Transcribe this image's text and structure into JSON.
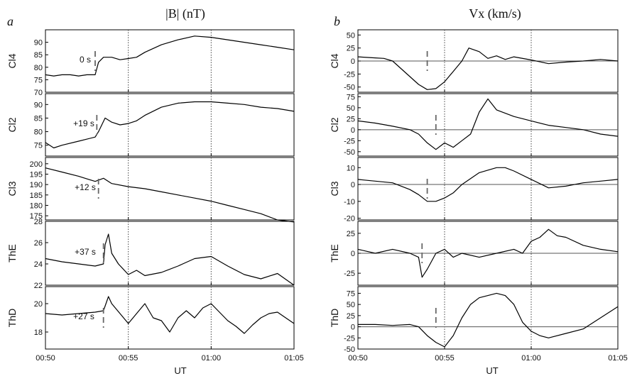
{
  "panels": [
    {
      "letter": "a",
      "title": "|B| (nT)",
      "xlabel": "UT",
      "xticks": [
        "00:50",
        "00:55",
        "01:00",
        "01:05"
      ],
      "rows": [
        {
          "label": "Cl4",
          "shift": "0 s",
          "yticks": [
            70,
            75,
            80,
            85,
            90
          ]
        },
        {
          "label": "Cl2",
          "shift": "+19 s",
          "yticks": [
            75,
            80,
            85,
            90
          ]
        },
        {
          "label": "Cl3",
          "shift": "+12 s",
          "yticks": [
            175,
            180,
            185,
            190,
            195,
            200
          ]
        },
        {
          "label": "ThE",
          "shift": "+37 s",
          "yticks": [
            22,
            24,
            26,
            28
          ]
        },
        {
          "label": "ThD",
          "shift": "+27 s",
          "yticks": [
            18,
            20
          ]
        }
      ]
    },
    {
      "letter": "b",
      "title": "Vx (km/s)",
      "xlabel": "UT",
      "xticks": [
        "00:50",
        "00:55",
        "01:00",
        "01:05"
      ],
      "rows": [
        {
          "label": "Cl4",
          "yticks": [
            -50,
            -25,
            0,
            25,
            50
          ]
        },
        {
          "label": "Cl2",
          "yticks": [
            -50,
            -25,
            0,
            25,
            50,
            75
          ]
        },
        {
          "label": "Cl3",
          "yticks": [
            -20,
            -10,
            0,
            10
          ]
        },
        {
          "label": "ThE",
          "yticks": [
            -25,
            0,
            25
          ]
        },
        {
          "label": "ThD",
          "yticks": [
            -50,
            -25,
            0,
            25,
            50,
            75
          ]
        }
      ]
    }
  ],
  "chart_data": [
    {
      "type": "line",
      "title": "|B| (nT)",
      "xlabel": "UT",
      "xlim": [
        0,
        15
      ],
      "x_unit": "minutes after 00:50 UT",
      "vertical_reference_lines": [
        5,
        10
      ],
      "series": [
        {
          "name": "Cl4",
          "time_shift": "0 s",
          "ylim": [
            70,
            95
          ],
          "marker_time": 3.0,
          "x": [
            0,
            0.5,
            1,
            1.5,
            2,
            2.5,
            3,
            3.2,
            3.5,
            4,
            4.5,
            5,
            5.5,
            6,
            7,
            8,
            9,
            10,
            11,
            12,
            13,
            14,
            15
          ],
          "y": [
            77,
            76.5,
            77,
            77,
            76.5,
            77,
            77,
            82,
            84,
            84,
            83,
            83.5,
            84,
            86,
            89,
            91,
            92.5,
            92,
            91,
            90,
            89,
            88,
            87
          ]
        },
        {
          "name": "Cl2",
          "time_shift": "+19 s",
          "ylim": [
            71,
            94
          ],
          "marker_time": 3.1,
          "x": [
            0,
            0.5,
            1,
            2,
            3,
            3.2,
            3.6,
            4,
            4.5,
            5,
            5.5,
            6,
            7,
            8,
            9,
            10,
            11,
            12,
            13,
            14,
            15
          ],
          "y": [
            76,
            74,
            75,
            76.5,
            78,
            80,
            85,
            83.5,
            82.5,
            83,
            84,
            86,
            89,
            90.5,
            91,
            91,
            90.5,
            90,
            89,
            88.5,
            87.5
          ]
        },
        {
          "name": "Cl3",
          "time_shift": "+12 s",
          "ylim": [
            173,
            203
          ],
          "marker_time": 3.2,
          "x": [
            0,
            1,
            2,
            3,
            3.5,
            4,
            5,
            6,
            7,
            8,
            9,
            10,
            11,
            12,
            13,
            14,
            15
          ],
          "y": [
            198,
            196,
            194,
            191.5,
            193,
            190.5,
            189,
            188,
            186.5,
            185,
            183.5,
            182,
            180,
            178,
            176,
            173,
            172
          ]
        },
        {
          "name": "ThE",
          "time_shift": "+37 s",
          "ylim": [
            22,
            28
          ],
          "marker_time": 3.5,
          "x": [
            0,
            1,
            2,
            3,
            3.5,
            3.6,
            3.8,
            4,
            4.4,
            5,
            5.5,
            6,
            7,
            8,
            9,
            10,
            11,
            12,
            13,
            14,
            15
          ],
          "y": [
            24.5,
            24.2,
            24,
            23.8,
            24,
            25.8,
            26.8,
            25,
            24,
            23,
            23.4,
            22.9,
            23.2,
            23.8,
            24.5,
            24.7,
            23.8,
            23,
            22.6,
            23.1,
            22
          ]
        },
        {
          "name": "ThD",
          "time_shift": "+27 s",
          "ylim": [
            16.8,
            21.2
          ],
          "marker_time": 3.5,
          "x": [
            0,
            1,
            2,
            3,
            3.5,
            3.8,
            4,
            4.5,
            5,
            5.5,
            6,
            6.5,
            7,
            7.5,
            8,
            8.5,
            9,
            9.5,
            10,
            10.5,
            11,
            11.5,
            12,
            12.5,
            13,
            13.5,
            14,
            14.5,
            15
          ],
          "y": [
            19.3,
            19.2,
            19.3,
            19.4,
            19.5,
            20.5,
            20,
            19.3,
            18.6,
            19.3,
            20,
            19,
            18.8,
            18,
            19,
            19.5,
            19,
            19.7,
            20,
            19.4,
            18.8,
            18.4,
            17.9,
            18.5,
            19,
            19.3,
            19.4,
            19,
            18.6
          ]
        }
      ]
    },
    {
      "type": "line",
      "title": "Vx (km/s)",
      "xlabel": "UT",
      "xlim": [
        0,
        15
      ],
      "x_unit": "minutes after 00:50 UT",
      "vertical_reference_lines": [
        5,
        10
      ],
      "zero_line": true,
      "series": [
        {
          "name": "Cl4",
          "ylim": [
            -60,
            60
          ],
          "marker_time": 4.0,
          "x": [
            0,
            1,
            1.5,
            2,
            2.5,
            3,
            3.5,
            4,
            4.5,
            5,
            5.5,
            6,
            6.4,
            7,
            7.5,
            8,
            8.5,
            9,
            10,
            11,
            12,
            13,
            14,
            15
          ],
          "y": [
            8,
            6,
            5,
            0,
            -15,
            -30,
            -45,
            -55,
            -53,
            -40,
            -20,
            0,
            25,
            18,
            5,
            10,
            3,
            8,
            2,
            -5,
            -2,
            0,
            3,
            0
          ]
        },
        {
          "name": "Cl2",
          "ylim": [
            -60,
            82
          ],
          "marker_time": 4.5,
          "x": [
            0,
            1,
            2,
            3,
            3.5,
            4,
            4.5,
            5,
            5.5,
            6,
            6.5,
            7,
            7.5,
            8,
            9,
            10,
            11,
            12,
            13,
            14,
            15
          ],
          "y": [
            20,
            15,
            8,
            0,
            -10,
            -30,
            -45,
            -30,
            -40,
            -25,
            -10,
            40,
            70,
            45,
            30,
            20,
            10,
            5,
            0,
            -10,
            -15
          ]
        },
        {
          "name": "Cl3",
          "ylim": [
            -21,
            16
          ],
          "marker_time": 4.0,
          "x": [
            0,
            1,
            2,
            3,
            3.5,
            4,
            4.5,
            5,
            5.5,
            6,
            7,
            8,
            8.5,
            9,
            10,
            11,
            12,
            13,
            14,
            15
          ],
          "y": [
            3,
            2,
            1,
            -3,
            -6,
            -10,
            -10,
            -8,
            -5,
            0,
            7,
            10,
            10,
            8,
            3,
            -2,
            -1,
            1,
            2,
            3
          ]
        },
        {
          "name": "ThE",
          "ylim": [
            -40,
            40
          ],
          "marker_time": 3.7,
          "x": [
            0,
            1,
            2,
            3,
            3.5,
            3.7,
            4,
            4.5,
            5,
            5.5,
            6,
            7,
            8,
            9,
            9.5,
            10,
            10.5,
            11,
            11.5,
            12,
            13,
            14,
            15
          ],
          "y": [
            5,
            0,
            5,
            0,
            -5,
            -30,
            -20,
            0,
            5,
            -5,
            0,
            -5,
            0,
            5,
            0,
            15,
            20,
            30,
            22,
            20,
            10,
            5,
            2
          ]
        },
        {
          "name": "ThD",
          "ylim": [
            -50,
            90
          ],
          "marker_time": 4.5,
          "x": [
            0,
            1,
            2,
            3,
            3.5,
            4,
            4.5,
            5,
            5.5,
            6,
            6.5,
            7,
            7.5,
            8,
            8.5,
            9,
            9.5,
            10,
            10.5,
            11,
            12,
            13,
            14,
            15
          ],
          "y": [
            5,
            5,
            3,
            5,
            0,
            -20,
            -35,
            -45,
            -20,
            20,
            50,
            65,
            70,
            75,
            70,
            50,
            10,
            -10,
            -20,
            -25,
            -15,
            -5,
            20,
            45
          ]
        }
      ]
    }
  ]
}
